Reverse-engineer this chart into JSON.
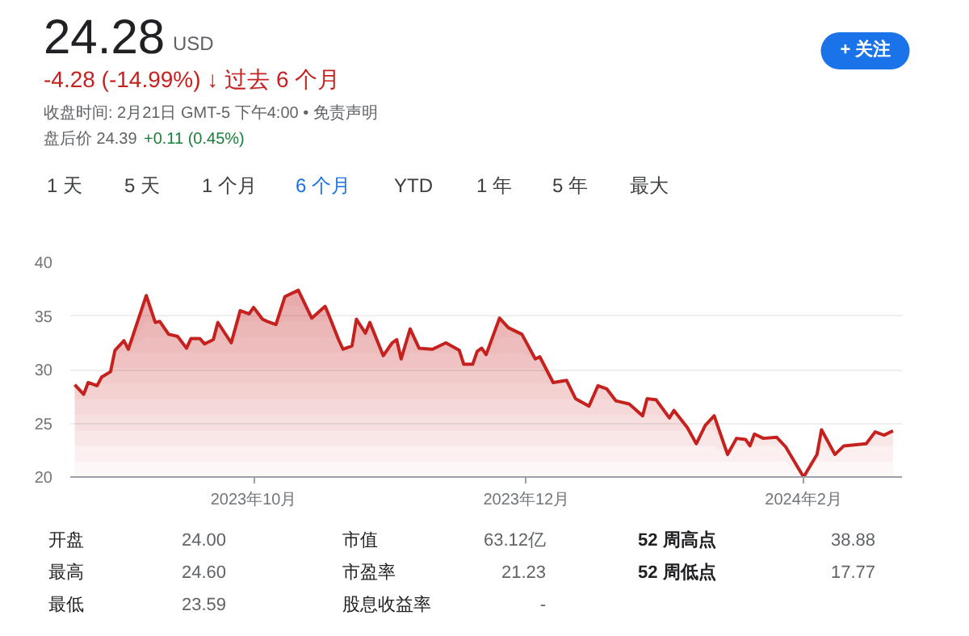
{
  "chart_data": {
    "type": "area",
    "color": "#c5221f",
    "x": [
      "2023-08-22",
      "2023-08-24",
      "2023-08-25",
      "2023-08-27",
      "2023-08-28",
      "2023-08-30",
      "2023-08-31",
      "2023-09-02",
      "2023-09-03",
      "2023-09-07",
      "2023-09-09",
      "2023-09-10",
      "2023-09-12",
      "2023-09-14",
      "2023-09-16",
      "2023-09-17",
      "2023-09-19",
      "2023-09-20",
      "2023-09-22",
      "2023-09-23",
      "2023-09-26",
      "2023-09-28",
      "2023-09-30",
      "2023-10-01",
      "2023-10-03",
      "2023-10-04",
      "2023-10-06",
      "2023-10-08",
      "2023-10-11",
      "2023-10-14",
      "2023-10-17",
      "2023-10-18",
      "2023-10-20",
      "2023-10-21",
      "2023-10-23",
      "2023-10-24",
      "2023-10-26",
      "2023-10-27",
      "2023-10-30",
      "2023-11-01",
      "2023-11-02",
      "2023-11-03",
      "2023-11-05",
      "2023-11-07",
      "2023-11-10",
      "2023-11-13",
      "2023-11-16",
      "2023-11-17",
      "2023-11-19",
      "2023-11-20",
      "2023-11-21",
      "2023-11-22",
      "2023-11-25",
      "2023-11-27",
      "2023-11-30",
      "2023-12-03",
      "2023-12-04",
      "2023-12-07",
      "2023-12-10",
      "2023-12-12",
      "2023-12-15",
      "2023-12-17",
      "2023-12-19",
      "2023-12-21",
      "2023-12-24",
      "2023-12-27",
      "2023-12-28",
      "2023-12-30",
      "2024-01-02",
      "2024-01-03",
      "2024-01-06",
      "2024-01-08",
      "2024-01-10",
      "2024-01-12",
      "2024-01-15",
      "2024-01-17",
      "2024-01-19",
      "2024-01-20",
      "2024-01-21",
      "2024-01-23",
      "2024-01-26",
      "2024-01-28",
      "2024-02-01",
      "2024-02-04",
      "2024-02-05",
      "2024-02-08",
      "2024-02-10",
      "2024-02-15",
      "2024-02-17",
      "2024-02-19",
      "2024-02-21"
    ],
    "values": [
      28.6,
      27.7,
      28.8,
      28.5,
      29.3,
      29.8,
      31.8,
      32.7,
      31.9,
      36.9,
      34.4,
      34.5,
      33.3,
      33.1,
      32.0,
      32.9,
      32.9,
      32.4,
      32.8,
      34.4,
      32.5,
      35.5,
      35.2,
      35.8,
      34.7,
      34.5,
      34.2,
      36.8,
      37.4,
      34.8,
      35.9,
      34.9,
      32.8,
      31.9,
      32.2,
      34.7,
      33.4,
      34.4,
      31.3,
      32.5,
      32.8,
      31.0,
      33.8,
      32.0,
      31.9,
      32.5,
      31.8,
      30.5,
      30.5,
      31.7,
      32.0,
      31.4,
      34.8,
      33.9,
      33.3,
      31.0,
      31.2,
      28.8,
      29.0,
      27.3,
      26.6,
      28.5,
      28.2,
      27.1,
      26.8,
      25.7,
      27.3,
      27.2,
      25.5,
      26.2,
      24.6,
      23.1,
      24.8,
      25.7,
      22.1,
      23.6,
      23.5,
      22.9,
      24.0,
      23.6,
      23.7,
      22.8,
      20.0,
      22.1,
      24.4,
      22.1,
      22.9,
      23.1,
      24.2,
      23.9,
      24.3
    ],
    "xlim": [
      "2023-08-21",
      "2024-02-23"
    ],
    "xticks": [
      {
        "value": "2023-10-01",
        "label": "2023年10月"
      },
      {
        "value": "2023-12-01",
        "label": "2023年12月"
      },
      {
        "value": "2024-02-01",
        "label": "2024年2月"
      }
    ],
    "ylim": [
      20,
      40
    ],
    "yticks": [
      20,
      25,
      30,
      35,
      40
    ],
    "grid": "y",
    "annotations": [
      "24.28",
      "USD",
      "-4.28 (-14.99%) ↓ 过去 6 个月",
      "收盘时间: 2月21日 GMT-5 下午4:00 • 免责声明",
      "盘后价 24.39",
      "+0.11 (0.45%)",
      "+ 关注",
      "1 天",
      "5 天",
      "1 个月",
      "6 个月",
      "YTD",
      "1 年",
      "5 年",
      "最大",
      "开盘",
      "24.00",
      "市值",
      "63.12亿",
      "52 周高点",
      "38.88",
      "最高",
      "24.60",
      "市盈率",
      "21.23",
      "52 周低点",
      "17.77",
      "最低",
      "23.59",
      "股息收益率",
      "-"
    ]
  }
}
